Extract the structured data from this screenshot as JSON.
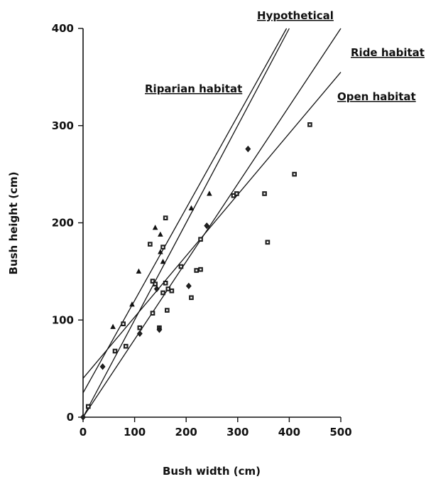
{
  "chart_data": {
    "type": "scatter",
    "title": "",
    "xlabel": "Bush width (cm)",
    "ylabel": "Bush height (cm)",
    "xlim": [
      0,
      500
    ],
    "ylim": [
      0,
      400
    ],
    "xticks": [
      0,
      100,
      200,
      300,
      400,
      500
    ],
    "yticks": [
      0,
      100,
      200,
      300,
      400
    ],
    "grid": false,
    "lines": [
      {
        "name": "Hypothetical",
        "intercept": 0,
        "slope": 1.0
      },
      {
        "name": "Riparian habitat",
        "intercept": 25,
        "slope": 0.95
      },
      {
        "name": "Ride habitat",
        "intercept": 0,
        "slope": 0.8
      },
      {
        "name": "Open habitat",
        "intercept": 40,
        "slope": 0.63
      }
    ],
    "series": [
      {
        "marker": "triangle",
        "points": [
          [
            58,
            93
          ],
          [
            95,
            116
          ],
          [
            108,
            150
          ],
          [
            140,
            195
          ],
          [
            150,
            188
          ],
          [
            150,
            170
          ],
          [
            155,
            160
          ],
          [
            210,
            215
          ],
          [
            245,
            230
          ]
        ]
      },
      {
        "marker": "square",
        "points": [
          [
            10,
            11
          ],
          [
            62,
            68
          ],
          [
            78,
            96
          ],
          [
            83,
            73
          ],
          [
            110,
            92
          ],
          [
            130,
            178
          ],
          [
            135,
            140
          ],
          [
            135,
            107
          ],
          [
            140,
            137
          ],
          [
            148,
            92
          ],
          [
            155,
            175
          ],
          [
            155,
            128
          ],
          [
            160,
            205
          ],
          [
            160,
            138
          ],
          [
            163,
            110
          ],
          [
            165,
            132
          ],
          [
            172,
            130
          ],
          [
            190,
            155
          ],
          [
            210,
            123
          ],
          [
            220,
            151
          ],
          [
            228,
            183
          ],
          [
            228,
            152
          ],
          [
            292,
            228
          ],
          [
            298,
            230
          ],
          [
            352,
            230
          ],
          [
            358,
            180
          ],
          [
            410,
            250
          ],
          [
            440,
            301
          ]
        ]
      },
      {
        "marker": "diamond",
        "points": [
          [
            0,
            0
          ],
          [
            38,
            52
          ],
          [
            110,
            86
          ],
          [
            143,
            132
          ],
          [
            148,
            90
          ],
          [
            205,
            135
          ],
          [
            240,
            197
          ],
          [
            320,
            276
          ]
        ]
      }
    ]
  }
}
